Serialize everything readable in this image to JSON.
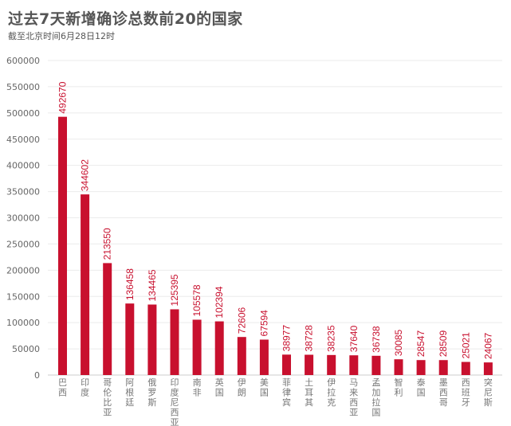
{
  "header": {
    "title": "过去7天新增确诊总数前20的国家",
    "subtitle": "截至北京时间6月28日12时"
  },
  "colors": {
    "bar": "#c8102e",
    "label": "#c8102e",
    "grid": "#ebebeb",
    "text": "#555555"
  },
  "chart_data": {
    "type": "bar",
    "title": "过去7天新增确诊总数前20的国家",
    "subtitle": "截至北京时间6月28日12时",
    "xlabel": "",
    "ylabel": "",
    "ylim": [
      0,
      600000
    ],
    "yticks": [
      0,
      50000,
      100000,
      150000,
      200000,
      250000,
      300000,
      350000,
      400000,
      450000,
      500000,
      550000,
      600000
    ],
    "grid": true,
    "legend": null,
    "categories": [
      "巴西",
      "印度",
      "哥伦比亚",
      "阿根廷",
      "俄罗斯",
      "印度尼西亚",
      "南非",
      "英国",
      "伊朗",
      "美国",
      "菲律宾",
      "土耳其",
      "伊拉克",
      "马来西亚",
      "孟加拉国",
      "智利",
      "泰国",
      "墨西哥",
      "西班牙",
      "突尼斯"
    ],
    "values": [
      492670,
      344602,
      213550,
      136458,
      134465,
      125395,
      105578,
      102394,
      72606,
      67594,
      38977,
      38728,
      38235,
      37640,
      36738,
      30085,
      28547,
      28509,
      25021,
      24067
    ]
  }
}
